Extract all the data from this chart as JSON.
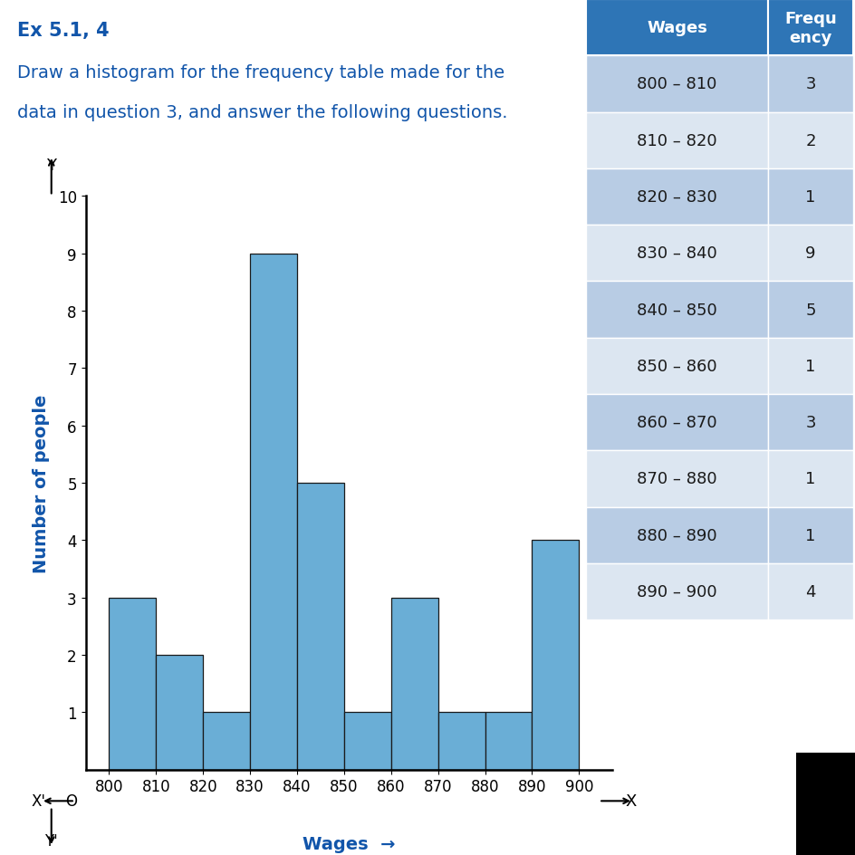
{
  "title": "Ex 5.1, 4",
  "description_line1": "Draw a histogram for the frequency table made for the",
  "description_line2": "data in question 3, and answer the following questions.",
  "wages": [
    800,
    810,
    820,
    830,
    840,
    850,
    860,
    870,
    880,
    890,
    900
  ],
  "frequencies": [
    3,
    2,
    1,
    9,
    5,
    1,
    3,
    1,
    1,
    4
  ],
  "wage_labels": [
    "800 – 810",
    "810 – 820",
    "820 – 830",
    "830 – 840",
    "840 – 850",
    "850 – 860",
    "860 – 870",
    "870 – 880",
    "880 – 890",
    "890 – 900"
  ],
  "bar_color": "#6aaed6",
  "bar_edge_color": "#1a1a1a",
  "ylabel": "Number of people",
  "xlabel": "Wages",
  "ylim": [
    0,
    10
  ],
  "yticks": [
    1,
    2,
    3,
    4,
    5,
    6,
    7,
    8,
    9,
    10
  ],
  "background_color": "#ffffff",
  "title_color": "#1155aa",
  "desc_color": "#1155aa",
  "table_header_bg": "#2e75b6",
  "table_header_fg": "#ffffff",
  "table_row_bg_dark": "#b8cce4",
  "table_row_bg_light": "#dce6f1",
  "table_text_color": "#1a1a1a",
  "axis_label_color": "#1155aa",
  "title_fontsize": 15,
  "desc_fontsize": 14,
  "tick_fontsize": 12,
  "axis_label_fontsize": 14,
  "table_fontsize": 13
}
